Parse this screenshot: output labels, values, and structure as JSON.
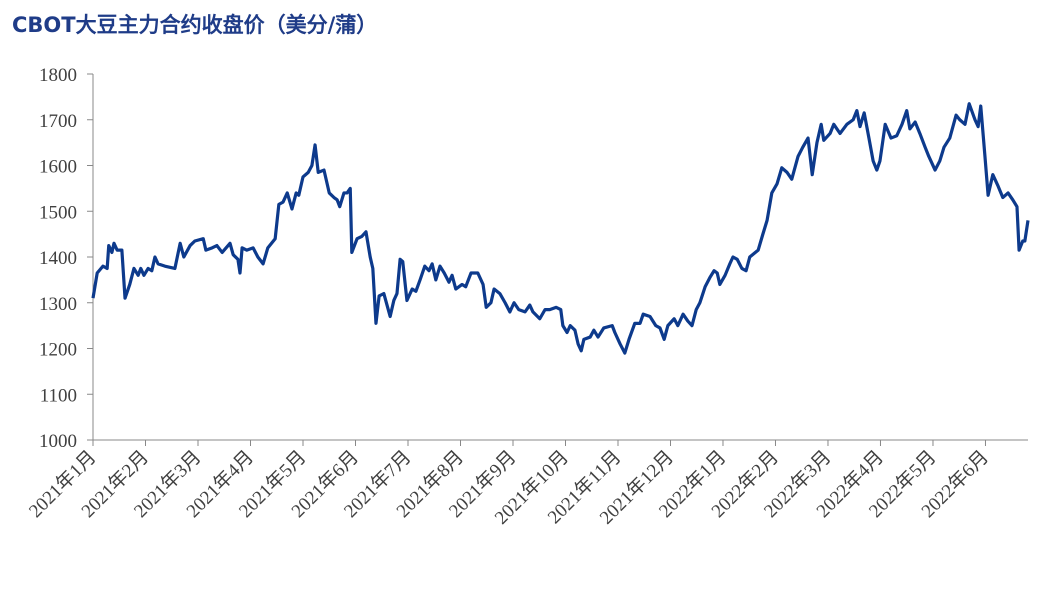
{
  "chart_data": {
    "type": "line",
    "title": "CBOT大豆主力合约收盘价（美分/蒲）",
    "color": "#0d3a8c",
    "xlim": [
      0,
      17.81
    ],
    "xticks": [
      {
        "value": 0,
        "label": "2021年1月"
      },
      {
        "value": 1,
        "label": "2021年2月"
      },
      {
        "value": 2,
        "label": "2021年3月"
      },
      {
        "value": 3,
        "label": "2021年4月"
      },
      {
        "value": 4,
        "label": "2021年5月"
      },
      {
        "value": 5,
        "label": "2021年6月"
      },
      {
        "value": 6,
        "label": "2021年7月"
      },
      {
        "value": 7,
        "label": "2021年8月"
      },
      {
        "value": 8,
        "label": "2021年9月"
      },
      {
        "value": 9,
        "label": "2021年10月"
      },
      {
        "value": 10,
        "label": "2021年11月"
      },
      {
        "value": 11,
        "label": "2021年12月"
      },
      {
        "value": 12,
        "label": "2022年1月"
      },
      {
        "value": 13,
        "label": "2022年2月"
      },
      {
        "value": 14,
        "label": "2022年3月"
      },
      {
        "value": 15,
        "label": "2022年4月"
      },
      {
        "value": 16,
        "label": "2022年5月"
      },
      {
        "value": 17,
        "label": "2022年6月"
      }
    ],
    "ylim": [
      1000,
      1800
    ],
    "yticks": [
      1000,
      1100,
      1200,
      1300,
      1400,
      1500,
      1600,
      1700,
      1800
    ],
    "x": [
      0,
      0.08,
      0.19,
      0.27,
      0.3,
      0.36,
      0.4,
      0.46,
      0.55,
      0.61,
      0.7,
      0.78,
      0.86,
      0.91,
      0.97,
      1.05,
      1.12,
      1.18,
      1.24,
      1.37,
      1.56,
      1.66,
      1.73,
      1.85,
      1.94,
      2.1,
      2.15,
      2.27,
      2.36,
      2.46,
      2.61,
      2.67,
      2.76,
      2.8,
      2.84,
      2.93,
      3.05,
      3.14,
      3.24,
      3.33,
      3.47,
      3.54,
      3.62,
      3.7,
      3.79,
      3.87,
      3.92,
      4.0,
      4.1,
      4.17,
      4.23,
      4.29,
      4.4,
      4.5,
      4.59,
      4.65,
      4.7,
      4.78,
      4.84,
      4.9,
      4.93,
      5.03,
      5.12,
      5.2,
      5.28,
      5.33,
      5.39,
      5.45,
      5.54,
      5.66,
      5.73,
      5.79,
      5.85,
      5.9,
      5.98,
      6.08,
      6.15,
      6.23,
      6.32,
      6.4,
      6.46,
      6.53,
      6.61,
      6.69,
      6.78,
      6.84,
      6.91,
      7.03,
      7.1,
      7.2,
      7.33,
      7.43,
      7.49,
      7.58,
      7.64,
      7.75,
      7.85,
      7.94,
      8.02,
      8.11,
      8.23,
      8.32,
      8.38,
      8.51,
      8.61,
      8.7,
      8.82,
      8.91,
      8.95,
      9.03,
      9.09,
      9.18,
      9.24,
      9.3,
      9.35,
      9.47,
      9.54,
      9.62,
      9.73,
      9.89,
      9.94,
      10.04,
      10.13,
      10.21,
      10.32,
      10.42,
      10.48,
      10.61,
      10.72,
      10.8,
      10.88,
      10.95,
      11.07,
      11.14,
      11.24,
      11.33,
      11.41,
      11.49,
      11.56,
      11.66,
      11.75,
      11.83,
      11.89,
      11.94,
      12.04,
      12.13,
      12.19,
      12.27,
      12.36,
      12.44,
      12.51,
      12.67,
      12.76,
      12.84,
      12.93,
      13.03,
      13.12,
      13.22,
      13.31,
      13.43,
      13.52,
      13.62,
      13.7,
      13.79,
      13.87,
      13.92,
      14.04,
      14.11,
      14.23,
      14.36,
      14.48,
      14.55,
      14.61,
      14.69,
      14.78,
      14.86,
      14.93,
      14.99,
      15.09,
      15.2,
      15.31,
      15.41,
      15.5,
      15.56,
      15.66,
      15.75,
      15.85,
      15.92,
      16.04,
      16.13,
      16.21,
      16.32,
      16.44,
      16.51,
      16.61,
      16.69,
      16.8,
      16.86,
      16.91,
      16.99,
      17.05,
      17.14,
      17.24,
      17.33,
      17.43,
      17.52,
      17.6,
      17.64,
      17.71,
      17.75,
      17.81
    ],
    "values": [
      1310,
      1365,
      1380,
      1375,
      1425,
      1410,
      1430,
      1415,
      1415,
      1310,
      1340,
      1375,
      1360,
      1375,
      1360,
      1375,
      1370,
      1400,
      1385,
      1380,
      1375,
      1430,
      1400,
      1425,
      1435,
      1440,
      1415,
      1420,
      1425,
      1410,
      1430,
      1405,
      1395,
      1365,
      1420,
      1415,
      1420,
      1400,
      1385,
      1420,
      1440,
      1515,
      1520,
      1540,
      1505,
      1540,
      1535,
      1575,
      1585,
      1600,
      1645,
      1585,
      1590,
      1540,
      1530,
      1525,
      1510,
      1540,
      1540,
      1550,
      1410,
      1440,
      1445,
      1455,
      1400,
      1375,
      1255,
      1315,
      1320,
      1270,
      1305,
      1320,
      1395,
      1390,
      1305,
      1330,
      1325,
      1350,
      1380,
      1370,
      1385,
      1350,
      1380,
      1365,
      1345,
      1360,
      1330,
      1340,
      1335,
      1365,
      1365,
      1340,
      1290,
      1300,
      1330,
      1320,
      1300,
      1280,
      1300,
      1285,
      1280,
      1295,
      1280,
      1265,
      1285,
      1285,
      1290,
      1285,
      1250,
      1235,
      1250,
      1240,
      1210,
      1195,
      1220,
      1225,
      1240,
      1225,
      1245,
      1250,
      1235,
      1210,
      1190,
      1220,
      1255,
      1255,
      1275,
      1270,
      1250,
      1245,
      1220,
      1250,
      1265,
      1250,
      1275,
      1260,
      1250,
      1285,
      1300,
      1335,
      1355,
      1370,
      1365,
      1340,
      1360,
      1385,
      1400,
      1395,
      1375,
      1370,
      1400,
      1415,
      1450,
      1480,
      1540,
      1560,
      1595,
      1585,
      1570,
      1620,
      1640,
      1660,
      1580,
      1650,
      1690,
      1655,
      1670,
      1690,
      1670,
      1690,
      1700,
      1720,
      1685,
      1715,
      1660,
      1610,
      1590,
      1610,
      1690,
      1660,
      1665,
      1690,
      1720,
      1680,
      1695,
      1670,
      1640,
      1620,
      1590,
      1610,
      1640,
      1660,
      1710,
      1700,
      1690,
      1735,
      1700,
      1685,
      1730,
      1620,
      1535,
      1580,
      1555,
      1530,
      1540,
      1525,
      1510,
      1415,
      1435,
      1435,
      1480
    ]
  }
}
